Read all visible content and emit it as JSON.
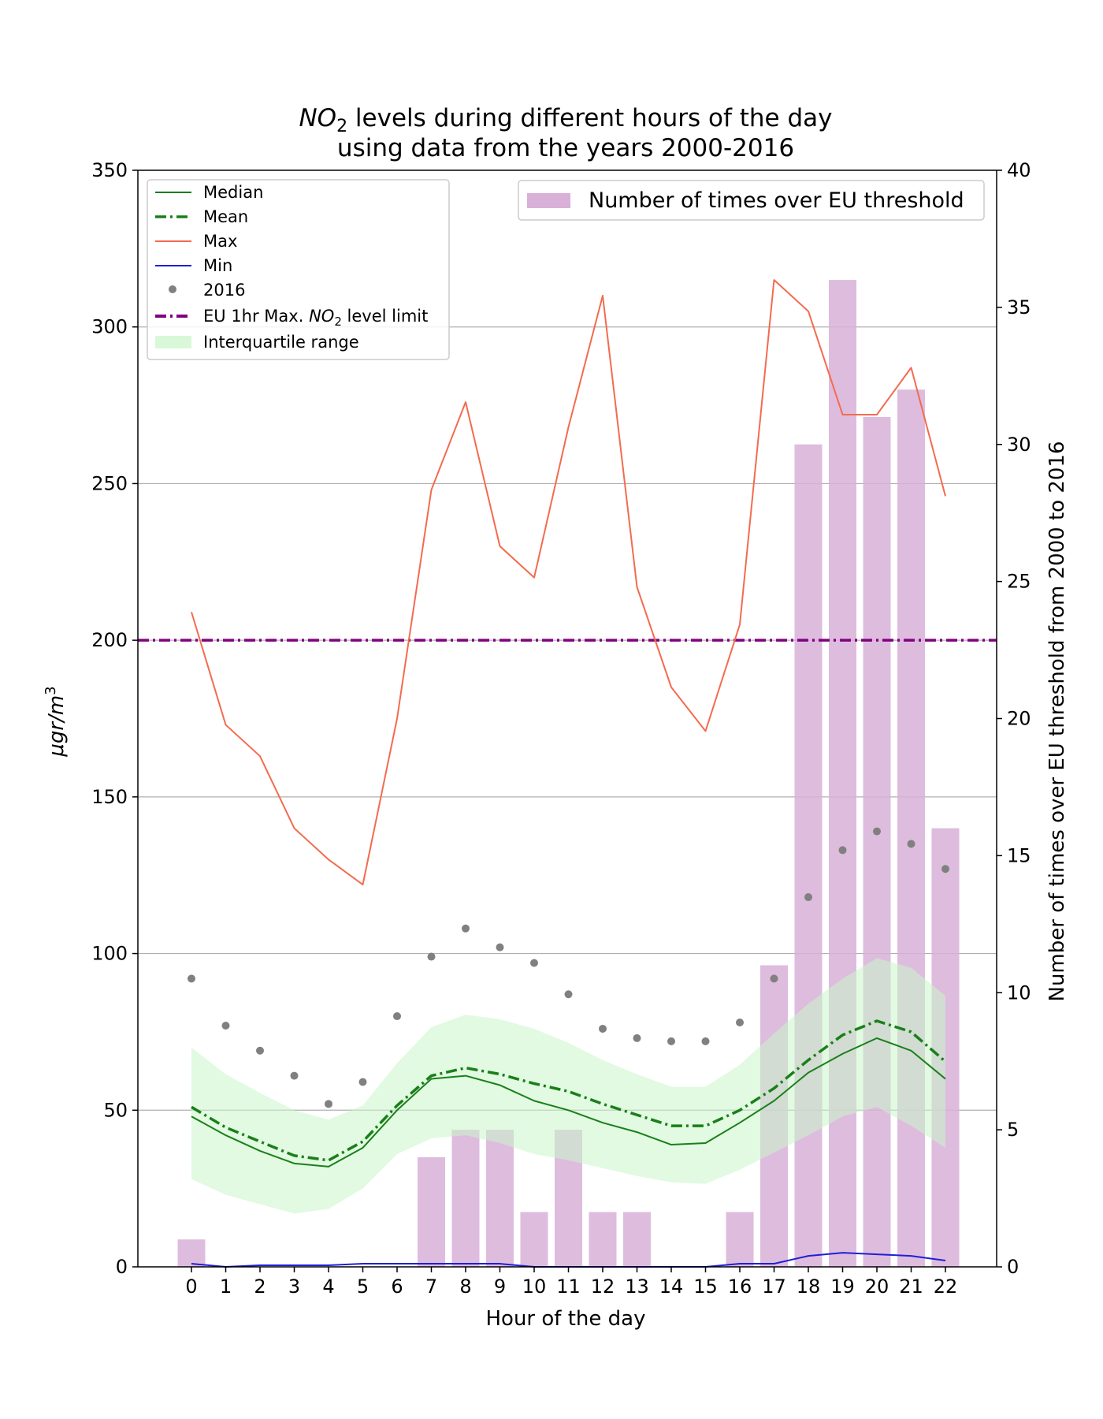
{
  "chart_data": {
    "type": "line",
    "title": {
      "line1_prefix": "NO",
      "line1_sub": "2",
      "line1_rest": " levels during different hours of the day",
      "line2": "using data from the years 2000-2016"
    },
    "xlabel": "Hour of the day",
    "ylabel": {
      "main": "μgr/m",
      "sup": "3"
    },
    "y2label": "Number of times over EU threshold from 2000 to 2016",
    "x": [
      0,
      1,
      2,
      3,
      4,
      5,
      6,
      7,
      8,
      9,
      10,
      11,
      12,
      13,
      14,
      15,
      16,
      17,
      18,
      19,
      20,
      21,
      22
    ],
    "ylim": [
      0,
      350
    ],
    "y2lim": [
      0,
      40
    ],
    "yticks": [
      0,
      50,
      100,
      150,
      200,
      250,
      300,
      350
    ],
    "y2ticks": [
      0,
      5,
      10,
      15,
      20,
      25,
      30,
      35,
      40
    ],
    "grid": "horizontal at left-axis ticks",
    "series": [
      {
        "name": "Median",
        "style": "solid",
        "color": "#1a7f1a",
        "values": [
          48,
          42,
          37,
          33,
          32,
          38,
          50,
          60,
          61,
          58,
          53,
          50,
          46,
          43,
          39,
          39.5,
          46,
          53,
          62,
          68,
          73,
          69,
          60
        ]
      },
      {
        "name": "Mean",
        "style": "dashdot",
        "color": "#1a7f1a",
        "values": [
          51,
          44.5,
          40,
          35.5,
          34,
          40,
          51.5,
          61,
          63.5,
          61.5,
          58.5,
          56,
          52,
          48.5,
          45,
          45,
          50,
          57,
          66,
          74,
          78.5,
          75,
          65.5
        ]
      },
      {
        "name": "Max",
        "style": "solid",
        "color": "#f36b4f",
        "values": [
          209,
          173,
          163,
          140,
          130,
          122,
          175,
          248,
          276,
          230,
          220,
          268,
          310,
          217,
          185,
          171,
          205,
          315,
          305,
          272,
          272,
          287,
          246
        ]
      },
      {
        "name": "Min",
        "style": "solid",
        "color": "#1f1fd6",
        "values": [
          1,
          0,
          0.5,
          0.5,
          0.5,
          1,
          1,
          1,
          1,
          1,
          0,
          0,
          0,
          0,
          0,
          0,
          1,
          1,
          3.5,
          4.5,
          4,
          3.5,
          2
        ]
      },
      {
        "name": "2016",
        "style": "dots",
        "color": "#808080",
        "values": [
          92,
          77,
          69,
          61,
          52,
          59,
          80,
          99,
          108,
          102,
          97,
          87,
          76,
          73,
          72,
          72,
          78,
          92,
          118,
          133,
          139,
          135,
          127
        ]
      },
      {
        "name": "EU 1hr Max. NO2 level limit",
        "style": "dashdot-hline",
        "color": "#800080",
        "value": 200
      },
      {
        "name": "Interquartile range",
        "style": "band",
        "color": "#c8f5c8",
        "lower": [
          28,
          23,
          20,
          17,
          18.5,
          25,
          36,
          41,
          42,
          39.5,
          36,
          34,
          31.5,
          29,
          27,
          26.5,
          31,
          36.5,
          42,
          48,
          51,
          45,
          38
        ],
        "upper": [
          70,
          61.5,
          55.5,
          50,
          47,
          51.5,
          65,
          76.5,
          80.5,
          79,
          76,
          71.5,
          66,
          61.5,
          57.5,
          57.5,
          64.5,
          74.5,
          84,
          92,
          98.5,
          95.5,
          86.5
        ]
      },
      {
        "name": "Number of times over EU threshold",
        "style": "bar",
        "axis": "right",
        "color": "#d8b0d8",
        "values": [
          1,
          0,
          0,
          0,
          0,
          0,
          0,
          4,
          5,
          5,
          2,
          5,
          2,
          2,
          0,
          0,
          2,
          11,
          30,
          36,
          31,
          32,
          16
        ]
      }
    ],
    "legend_left": {
      "placement": "upper-left",
      "entries": [
        "Median",
        "Mean",
        "Max",
        "Min",
        "2016",
        "EU 1hr Max. NO2 level limit",
        "Interquartile range"
      ],
      "eu_prefix": "EU 1hr Max. ",
      "eu_no": "NO",
      "eu_sub": "2",
      "eu_suffix": " level limit"
    },
    "legend_right": {
      "placement": "upper-right",
      "entries": [
        "Number of times over EU threshold"
      ]
    },
    "colors": {
      "median": "#1a7f1a",
      "mean": "#1a7f1a",
      "max": "#f36b4f",
      "min": "#1f1fd6",
      "dots": "#808080",
      "eu": "#800080",
      "iqr": "#c8f5c8",
      "bars": "#d8b0d8",
      "grid": "#b0b0b0"
    }
  }
}
